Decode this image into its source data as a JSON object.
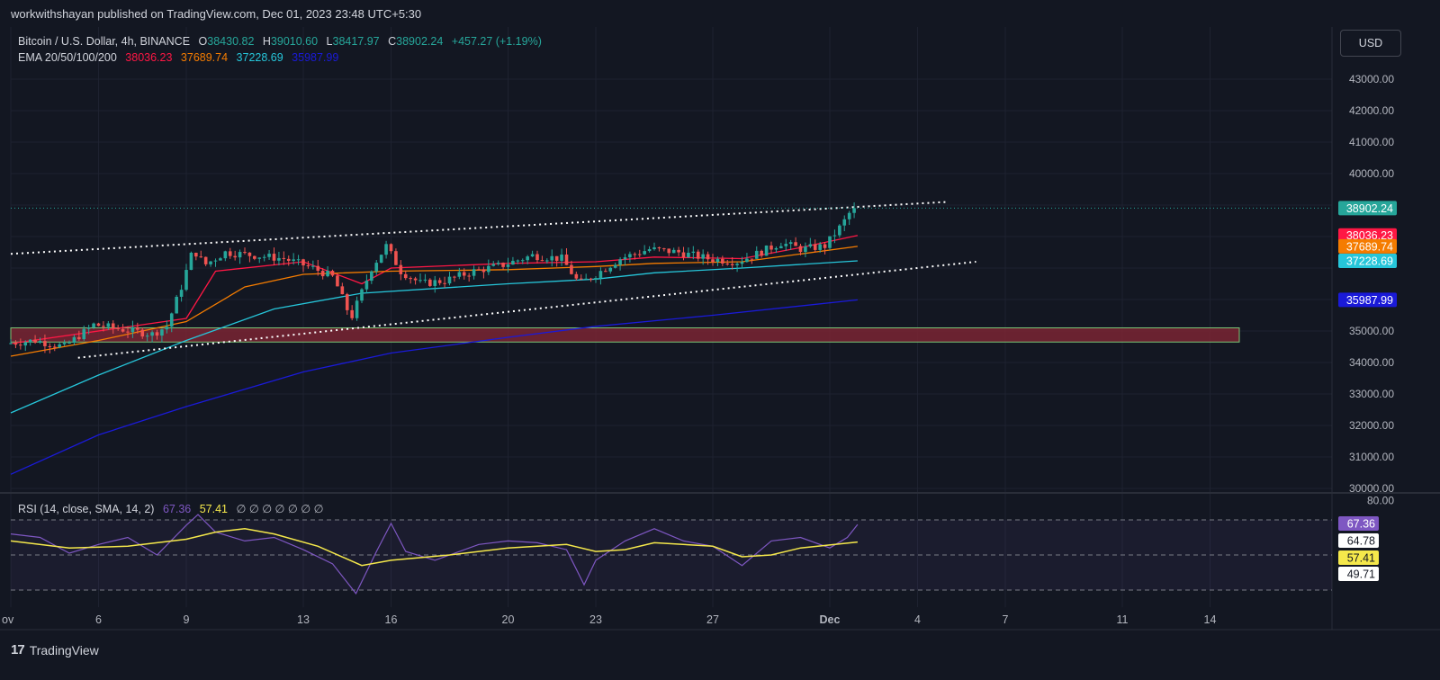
{
  "publisher": "workwithshayan published on TradingView.com, Dec 01, 2023 23:48 UTC+5:30",
  "legend": {
    "symbol": "Bitcoin / U.S. Dollar, 4h, BINANCE",
    "o_label": "O",
    "o_value": "38430.82",
    "h_label": "H",
    "h_value": "39010.60",
    "l_label": "L",
    "l_value": "38417.97",
    "c_label": "C",
    "c_value": "38902.24",
    "change": "+457.27 (+1.19%)",
    "ema_label": "EMA 20/50/100/200",
    "ema20": "38036.23",
    "ema50": "37689.74",
    "ema100": "37228.69",
    "ema200": "35987.99"
  },
  "rsi_legend": {
    "label": "RSI (14, close, SMA, 14, 2)",
    "rsi": "67.36",
    "sma": "57.41",
    "extras": "∅ ∅ ∅ ∅ ∅ ∅ ∅"
  },
  "currency_button": "USD",
  "branding": "TradingView",
  "colors": {
    "background": "#131722",
    "up": "#26a69a",
    "down": "#ef5350",
    "ema20": "#ff1744",
    "ema50": "#f57c00",
    "ema100": "#26c6da",
    "ema200": "#1a1ad8",
    "rsi": "#7e57c2",
    "rsi_sma": "#f5e84b",
    "zone_fill": "#7a2433",
    "zone_border": "#7cc576"
  },
  "chart_data": [
    {
      "type": "candlestick",
      "title": "Bitcoin / U.S. Dollar, 4h, BINANCE",
      "x_ticks": [
        "ov",
        "6",
        "9",
        "13",
        "16",
        "20",
        "23",
        "27",
        "Dec",
        "4",
        "7",
        "11",
        "14"
      ],
      "x_tick_days": [
        3,
        6,
        9,
        13,
        16,
        20,
        23,
        27,
        31,
        34,
        37,
        41,
        44
      ],
      "y_ticks": [
        "43000.00",
        "42000.00",
        "41000.00",
        "40000.00",
        "35000.00",
        "34000.00",
        "33000.00",
        "32000.00",
        "31000.00",
        "30000.00"
      ],
      "y_tick_values": [
        43000,
        42000,
        41000,
        40000,
        35000,
        34000,
        33000,
        32000,
        31000,
        30000
      ],
      "ylim": [
        29500,
        44500
      ],
      "last_price": 38902.24,
      "price_labels": [
        {
          "name": "Close",
          "value": "38902.24",
          "price": 38902.24,
          "color": "#26a69a"
        },
        {
          "name": "EMA 20",
          "value": "38036.23",
          "price": 38036.23,
          "color": "#ff1744"
        },
        {
          "name": "EMA 50",
          "value": "37689.74",
          "price": 37689.74,
          "color": "#f57c00"
        },
        {
          "name": "EMA 100",
          "value": "37228.69",
          "price": 37228.69,
          "color": "#26c6da"
        },
        {
          "name": "EMA 200",
          "value": "35987.99",
          "price": 35987.99,
          "color": "#1a1ad8"
        }
      ],
      "price_anchors": [
        [
          3.0,
          34600
        ],
        [
          4.0,
          34700
        ],
        [
          5.0,
          34500
        ],
        [
          6.0,
          35200
        ],
        [
          7.0,
          35050
        ],
        [
          8.0,
          34900
        ],
        [
          8.5,
          35150
        ],
        [
          9.0,
          36400
        ],
        [
          9.4,
          37600
        ],
        [
          9.8,
          37100
        ],
        [
          10.5,
          37500
        ],
        [
          11.5,
          37400
        ],
        [
          12.5,
          37300
        ],
        [
          13.5,
          37000
        ],
        [
          14.2,
          36700
        ],
        [
          14.8,
          35400
        ],
        [
          15.5,
          37000
        ],
        [
          16.0,
          37700
        ],
        [
          16.5,
          36900
        ],
        [
          17.2,
          36500
        ],
        [
          18.0,
          36600
        ],
        [
          19.0,
          36900
        ],
        [
          20.0,
          37100
        ],
        [
          21.0,
          37400
        ],
        [
          22.0,
          37300
        ],
        [
          22.6,
          36500
        ],
        [
          23.0,
          36700
        ],
        [
          24.0,
          37300
        ],
        [
          25.0,
          37600
        ],
        [
          26.0,
          37500
        ],
        [
          27.0,
          37300
        ],
        [
          28.0,
          37200
        ],
        [
          28.8,
          37500
        ],
        [
          29.5,
          37800
        ],
        [
          30.2,
          37600
        ],
        [
          31.0,
          37700
        ],
        [
          31.6,
          38400
        ],
        [
          31.95,
          38902.24
        ]
      ],
      "ema_series": [
        {
          "name": "EMA 20",
          "color": "#ff1744",
          "points": [
            [
              3,
              34600
            ],
            [
              9,
              35400
            ],
            [
              10,
              36900
            ],
            [
              13,
              37200
            ],
            [
              15,
              36500
            ],
            [
              16,
              37000
            ],
            [
              20,
              37150
            ],
            [
              23,
              37200
            ],
            [
              25,
              37350
            ],
            [
              28,
              37300
            ],
            [
              30,
              37650
            ],
            [
              31.95,
              38036
            ]
          ]
        },
        {
          "name": "EMA 50",
          "color": "#f57c00",
          "points": [
            [
              3,
              34200
            ],
            [
              6,
              34700
            ],
            [
              9,
              35300
            ],
            [
              11,
              36400
            ],
            [
              13,
              36800
            ],
            [
              16,
              36900
            ],
            [
              20,
              36950
            ],
            [
              23,
              37050
            ],
            [
              25,
              37150
            ],
            [
              28,
              37200
            ],
            [
              31.95,
              37690
            ]
          ]
        },
        {
          "name": "EMA 100",
          "color": "#26c6da",
          "points": [
            [
              3,
              32400
            ],
            [
              6,
              33600
            ],
            [
              9,
              34700
            ],
            [
              12,
              35700
            ],
            [
              15,
              36200
            ],
            [
              20,
              36500
            ],
            [
              23,
              36650
            ],
            [
              25,
              36850
            ],
            [
              28,
              37000
            ],
            [
              31.95,
              37229
            ]
          ]
        },
        {
          "name": "EMA 200",
          "color": "#1a1ad8",
          "points": [
            [
              3,
              30450
            ],
            [
              6,
              31700
            ],
            [
              9,
              32600
            ],
            [
              13,
              33700
            ],
            [
              16,
              34300
            ],
            [
              20,
              34800
            ],
            [
              23,
              35150
            ],
            [
              27,
              35500
            ],
            [
              31.95,
              35988
            ]
          ]
        }
      ],
      "trendlines": [
        {
          "name": "upper-channel",
          "from": [
            3,
            37450
          ],
          "to": [
            35,
            39100
          ]
        },
        {
          "name": "lower-channel",
          "from": [
            5.3,
            34150
          ],
          "to": [
            36,
            37200
          ]
        }
      ],
      "support_zone": {
        "from_day": 3,
        "to_day": 45,
        "high": 35100,
        "low": 34650
      }
    },
    {
      "type": "line",
      "title": "RSI (14, close, SMA, 14, 2)",
      "y_ticks": [
        "80.00"
      ],
      "y_tick_values": [
        80
      ],
      "ylim": [
        18,
        82
      ],
      "bands": {
        "upper": 70,
        "middle": 50,
        "lower": 30
      },
      "value_labels": [
        {
          "value": "67.36",
          "color": "#7e57c2"
        },
        {
          "value": "64.78",
          "color": "#ffffff"
        },
        {
          "value": "57.41",
          "color": "#f5e84b"
        },
        {
          "value": "49.71",
          "color": "#ffffff"
        }
      ],
      "series": [
        {
          "name": "RSI",
          "color": "#7e57c2",
          "points": [
            [
              3,
              62
            ],
            [
              4,
              60
            ],
            [
              5,
              51
            ],
            [
              6,
              56
            ],
            [
              7,
              60
            ],
            [
              8,
              50
            ],
            [
              9,
              67
            ],
            [
              9.4,
              73
            ],
            [
              10,
              63
            ],
            [
              11,
              58
            ],
            [
              12,
              60
            ],
            [
              13,
              53
            ],
            [
              14,
              45
            ],
            [
              14.8,
              28
            ],
            [
              15.5,
              52
            ],
            [
              16,
              68
            ],
            [
              16.5,
              52
            ],
            [
              17.5,
              47
            ],
            [
              19,
              56
            ],
            [
              20,
              58
            ],
            [
              21,
              57
            ],
            [
              22,
              53
            ],
            [
              22.6,
              33
            ],
            [
              23,
              47
            ],
            [
              24,
              58
            ],
            [
              25,
              65
            ],
            [
              26,
              58
            ],
            [
              27,
              55
            ],
            [
              28,
              44
            ],
            [
              29,
              58
            ],
            [
              30,
              60
            ],
            [
              31,
              54
            ],
            [
              31.6,
              60
            ],
            [
              31.95,
              67.36
            ]
          ]
        },
        {
          "name": "RSI-based MA",
          "color": "#f5e84b",
          "points": [
            [
              3,
              58
            ],
            [
              5,
              54
            ],
            [
              7,
              55
            ],
            [
              9,
              59
            ],
            [
              10,
              63
            ],
            [
              11,
              65
            ],
            [
              12,
              62
            ],
            [
              13.5,
              55
            ],
            [
              15,
              44
            ],
            [
              16,
              47
            ],
            [
              18,
              50
            ],
            [
              20,
              54
            ],
            [
              22,
              56
            ],
            [
              23,
              52
            ],
            [
              24,
              53
            ],
            [
              25,
              57
            ],
            [
              27,
              55
            ],
            [
              28,
              49
            ],
            [
              29,
              50
            ],
            [
              30,
              54
            ],
            [
              31.95,
              57.41
            ]
          ]
        }
      ]
    }
  ]
}
